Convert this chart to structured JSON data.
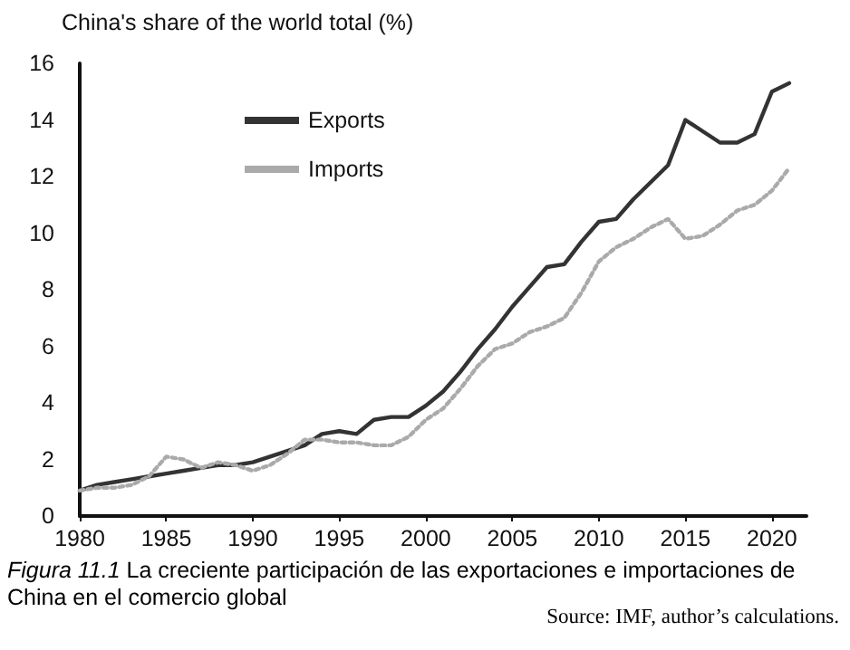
{
  "chart_data": {
    "type": "line",
    "ylabel": "China's share of the world total (%)",
    "x": [
      1980,
      1981,
      1982,
      1983,
      1984,
      1985,
      1986,
      1987,
      1988,
      1989,
      1990,
      1991,
      1992,
      1993,
      1994,
      1995,
      1996,
      1997,
      1998,
      1999,
      2000,
      2001,
      2002,
      2003,
      2004,
      2005,
      2006,
      2007,
      2008,
      2009,
      2010,
      2011,
      2012,
      2013,
      2014,
      2015,
      2016,
      2017,
      2018,
      2019,
      2020,
      2021
    ],
    "series": [
      {
        "name": "Exports",
        "color": "#333333",
        "line_style": "solid",
        "values": [
          0.9,
          1.1,
          1.2,
          1.3,
          1.4,
          1.5,
          1.6,
          1.7,
          1.8,
          1.8,
          1.9,
          2.1,
          2.3,
          2.5,
          2.9,
          3.0,
          2.9,
          3.4,
          3.5,
          3.5,
          3.9,
          4.4,
          5.1,
          5.9,
          6.6,
          7.4,
          8.1,
          8.8,
          8.9,
          9.7,
          10.4,
          10.5,
          11.2,
          11.8,
          12.4,
          14.0,
          13.6,
          13.2,
          13.2,
          13.5,
          15.0,
          15.3
        ]
      },
      {
        "name": "Imports",
        "color": "#aaaaaa",
        "line_style": "dotted",
        "values": [
          0.9,
          1.0,
          1.0,
          1.1,
          1.4,
          2.1,
          2.0,
          1.7,
          1.9,
          1.8,
          1.6,
          1.8,
          2.2,
          2.7,
          2.7,
          2.6,
          2.6,
          2.5,
          2.5,
          2.8,
          3.4,
          3.8,
          4.5,
          5.3,
          5.9,
          6.1,
          6.5,
          6.7,
          7.0,
          7.9,
          9.0,
          9.5,
          9.8,
          10.2,
          10.5,
          9.8,
          9.9,
          10.3,
          10.8,
          11.0,
          11.5,
          12.3
        ]
      }
    ],
    "xlim": [
      1980,
      2022
    ],
    "xticks": [
      1980,
      1985,
      1990,
      1995,
      2000,
      2005,
      2010,
      2015,
      2020
    ],
    "ylim": [
      0,
      16
    ],
    "yticks": [
      0,
      2,
      4,
      6,
      8,
      10,
      12,
      14,
      16
    ],
    "grid": false,
    "legend": "top left",
    "marker": "none",
    "annotations": [
      "Figura 11.1",
      "La creciente participación de las exportaciones e importaciones de China en el comercio global",
      "Source: IMF, author’s calculations."
    ]
  }
}
